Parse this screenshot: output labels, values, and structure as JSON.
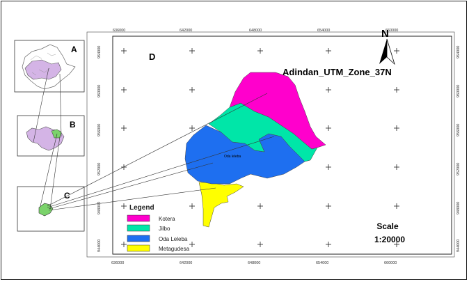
{
  "insets": {
    "a_label": "A",
    "b_label": "B",
    "c_label": "C"
  },
  "map": {
    "panel_label": "D",
    "projection": "Adindan_UTM_Zone_37N",
    "north_letter": "N",
    "place_label": "Oda leleba",
    "x_ticks": [
      "636000",
      "642000",
      "648000",
      "654000",
      "660000"
    ],
    "y_ticks_left": [
      "964000",
      "960000",
      "956000",
      "952000",
      "948000",
      "944000"
    ],
    "y_ticks_right": [
      "964000",
      "960000",
      "956000",
      "952000",
      "948000",
      "944000"
    ]
  },
  "legend": {
    "title": "Legend",
    "items": [
      {
        "label": "Kotera",
        "color": "#ff00cc"
      },
      {
        "label": "Jilbo",
        "color": "#00e6a8"
      },
      {
        "label": "Oda Leleba",
        "color": "#1e6ff0"
      },
      {
        "label": "Metagudesa",
        "color": "#ffff00"
      }
    ]
  },
  "scale": {
    "title": "Scale",
    "value": "1:20000"
  },
  "colors": {
    "kotera": "#ff00cc",
    "jilbo": "#00e6a8",
    "oda_leleba": "#1e6ff0",
    "metagudesa": "#ffff00",
    "inset_fill": "#d4b4e6"
  }
}
